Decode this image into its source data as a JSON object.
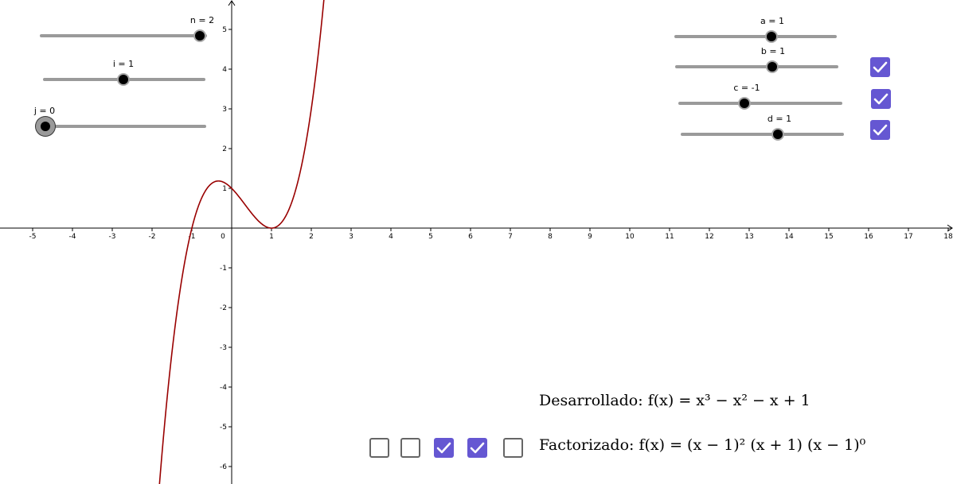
{
  "graph": {
    "x_ticks": [
      "-5",
      "-4",
      "-3",
      "-2",
      "-1",
      "0",
      "1",
      "2",
      "3",
      "4",
      "5",
      "6",
      "7",
      "8",
      "9",
      "10",
      "11",
      "12",
      "13",
      "14",
      "15",
      "16",
      "17",
      "18"
    ],
    "y_ticks_pos": [
      "1",
      "2",
      "3",
      "4",
      "5"
    ],
    "y_ticks_neg": [
      "-1",
      "-2",
      "-3",
      "-4",
      "-5",
      "-6"
    ],
    "curve_color": "#990000",
    "function": "(x-1)^2 (x+1)"
  },
  "sliders": {
    "n": {
      "label": "n = 2",
      "value": 2
    },
    "i": {
      "label": "i = 1",
      "value": 1
    },
    "j": {
      "label": "j = 0",
      "value": 0
    },
    "a": {
      "label": "a = 1",
      "value": 1
    },
    "b": {
      "label": "b = 1",
      "value": 1
    },
    "c": {
      "label": "c = -1",
      "value": -1
    },
    "d": {
      "label": "d = 1",
      "value": 1
    }
  },
  "checkboxes_right": [
    true,
    true,
    true
  ],
  "checkboxes_bottom": [
    false,
    false,
    true,
    true,
    false
  ],
  "accent_color": "#6557d2",
  "expanded": {
    "label": "Desarrollado:",
    "formula": "f(x) = x³ − x² − x + 1"
  },
  "factored": {
    "label": "Factorizado:",
    "formula": "f(x) = (x − 1)² (x + 1) (x − 1)⁰"
  }
}
